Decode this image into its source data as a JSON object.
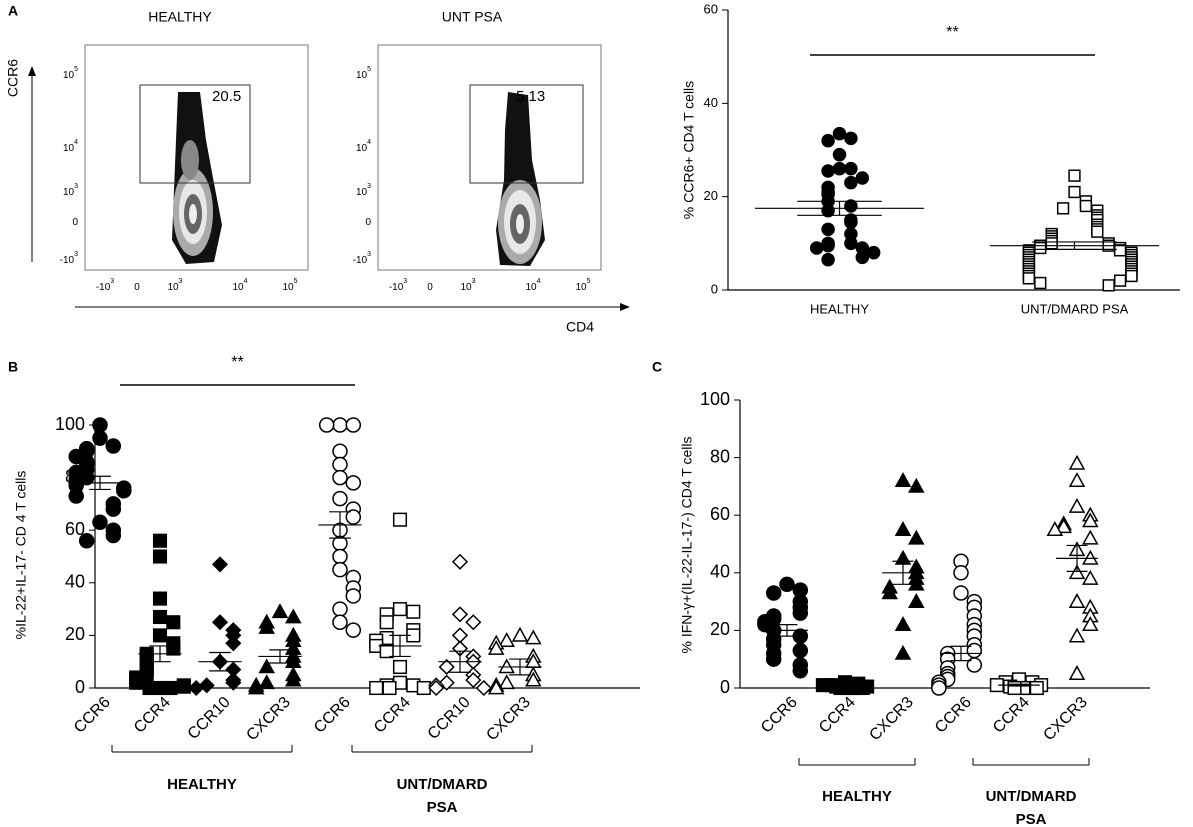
{
  "panels": [
    "A",
    "B",
    "C"
  ],
  "flow": {
    "titles": [
      "HEALTHY",
      "UNT PSA"
    ],
    "ylabel": "CCR6",
    "xlabel": "CD4",
    "gates": [
      20.5,
      5.13
    ],
    "yticks": [
      {
        "base": "10",
        "exp": "5"
      },
      {
        "base": "10",
        "exp": "4"
      },
      {
        "base": "10",
        "exp": "3"
      },
      {
        "base": "0"
      },
      {
        "base": "-10",
        "exp": "3"
      }
    ],
    "xticks": [
      {
        "base": "-10",
        "exp": "3"
      },
      {
        "base": "0"
      },
      {
        "base": "10",
        "exp": "3"
      },
      {
        "base": "10",
        "exp": "4"
      },
      {
        "base": "10",
        "exp": "5"
      }
    ]
  },
  "chart_data": [
    {
      "type": "dot",
      "ylabel": "% CCR6+ CD4 T cells",
      "ylim": [
        0,
        60
      ],
      "yticks": [
        0,
        20,
        40,
        60
      ],
      "annotation": "**",
      "series": [
        {
          "name": "HEALTHY",
          "marker": "circle",
          "filled": true,
          "mean": 17.5,
          "sem": 1.5,
          "values": [
            33.5,
            32.5,
            32,
            29,
            26,
            26,
            25.5,
            24,
            23,
            22,
            21,
            20.5,
            19,
            18,
            17,
            15,
            14.5,
            13,
            12,
            10,
            10,
            9.5,
            9,
            9,
            8,
            7,
            6.5
          ]
        },
        {
          "name": "UNT/DMARD  PSA",
          "marker": "square",
          "filled": false,
          "mean": 9.5,
          "sem": 0.8,
          "values": [
            24.5,
            21,
            19,
            18,
            17.5,
            17,
            16,
            15.5,
            15,
            14,
            13.5,
            13,
            12.5,
            12,
            11.5,
            11,
            10.5,
            10,
            10,
            9.5,
            9.5,
            9,
            9,
            8.5,
            8.5,
            8,
            8,
            7.5,
            7.5,
            7,
            7,
            6.5,
            6.5,
            6,
            6,
            5.5,
            5.5,
            5,
            5,
            4.5,
            4.5,
            4,
            4,
            3.5,
            3.5,
            3,
            3,
            2.5,
            2,
            1.5,
            1
          ]
        }
      ]
    },
    {
      "type": "dot",
      "ylabel": "%IL-22+IL-17- CD 4 T cells",
      "ylim": [
        0,
        100
      ],
      "yticks": [
        0,
        20,
        40,
        60,
        80,
        100
      ],
      "annotation": "**",
      "groups": [
        {
          "name": [
            "HEALTHY"
          ],
          "series": [
            {
              "name": "CCR6",
              "marker": "circle",
              "filled": true,
              "mean": 78,
              "sem": 2.5,
              "values": [
                100,
                95,
                92,
                91,
                90,
                88,
                86,
                85,
                83,
                82,
                80,
                79,
                78,
                77,
                76,
                75,
                73,
                70,
                68,
                63,
                60,
                58,
                56
              ]
            },
            {
              "name": "CCR4",
              "marker": "square",
              "filled": true,
              "mean": 13,
              "sem": 3,
              "values": [
                56,
                50,
                34,
                27,
                25,
                20,
                17,
                15,
                13,
                12,
                10,
                8,
                7,
                5,
                4,
                3,
                2,
                1,
                0.5,
                0,
                0,
                0
              ]
            },
            {
              "name": "CCR10",
              "marker": "diamond",
              "filled": true,
              "mean": 10,
              "sem": 3.5,
              "values": [
                47,
                25,
                22,
                20,
                17,
                10,
                7,
                3,
                2,
                1,
                0
              ]
            },
            {
              "name": "CXCR3",
              "marker": "triangle",
              "filled": true,
              "mean": 12,
              "sem": 2.5,
              "values": [
                29,
                27,
                25,
                23,
                20,
                18,
                15,
                12,
                10,
                8,
                5,
                3,
                2,
                1,
                0
              ]
            }
          ]
        },
        {
          "name": [
            "UNT/DMARD",
            "PSA"
          ],
          "series": [
            {
              "name": "CCR6",
              "marker": "circle",
              "filled": false,
              "mean": 62,
              "sem": 5,
              "values": [
                100,
                100,
                100,
                90,
                85,
                80,
                78,
                72,
                68,
                65,
                60,
                55,
                50,
                45,
                42,
                38,
                35,
                30,
                25,
                22
              ]
            },
            {
              "name": "CCR4",
              "marker": "square",
              "filled": false,
              "mean": 16,
              "sem": 4,
              "values": [
                64,
                30,
                29,
                28,
                25,
                22,
                20,
                19,
                18,
                16,
                14,
                8,
                2,
                1,
                1,
                0,
                0,
                0
              ]
            },
            {
              "name": "CCR10",
              "marker": "diamond",
              "filled": false,
              "mean": 10,
              "sem": 4,
              "values": [
                48,
                28,
                25,
                20,
                15,
                12,
                10,
                8,
                5,
                3,
                2,
                1,
                0,
                0
              ]
            },
            {
              "name": "CXCR3",
              "marker": "triangle",
              "filled": false,
              "mean": 8,
              "sem": 3,
              "values": [
                20,
                19,
                18,
                17,
                15,
                12,
                10,
                8,
                5,
                3,
                2,
                1,
                0
              ]
            }
          ]
        }
      ]
    },
    {
      "type": "dot",
      "ylabel": "% IFN-γ+(IL-22-IL-17-) CD4 T cells",
      "ylim": [
        0,
        100
      ],
      "yticks": [
        0,
        20,
        40,
        60,
        80,
        100
      ],
      "groups": [
        {
          "name": [
            "HEALTHY"
          ],
          "series": [
            {
              "name": "CCR6",
              "marker": "circle",
              "filled": true,
              "mean": 20,
              "sem": 2,
              "values": [
                36,
                34,
                33,
                30,
                28,
                26,
                25,
                24,
                23,
                22,
                20,
                18,
                17,
                15,
                13,
                12,
                10,
                8,
                6
              ]
            },
            {
              "name": "CCR4",
              "marker": "square",
              "filled": true,
              "mean": 0.5,
              "sem": 0.3,
              "values": [
                2,
                1.5,
                1,
                1,
                0.5,
                0.5,
                0,
                0,
                0,
                0
              ]
            },
            {
              "name": "CXCR3",
              "marker": "triangle",
              "filled": true,
              "mean": 40,
              "sem": 4,
              "values": [
                72,
                70,
                55,
                52,
                45,
                42,
                40,
                38,
                36,
                35,
                33,
                30,
                22,
                12
              ]
            }
          ]
        },
        {
          "name": [
            "UNT/DMARD",
            "PSA"
          ],
          "series": [
            {
              "name": "CCR6",
              "marker": "circle",
              "filled": false,
              "mean": 12,
              "sem": 2.5,
              "values": [
                44,
                40,
                33,
                30,
                28,
                25,
                22,
                20,
                18,
                15,
                13,
                12,
                10,
                8,
                7,
                5,
                4,
                3,
                2,
                1,
                0
              ]
            },
            {
              "name": "CCR4",
              "marker": "square",
              "filled": false,
              "mean": 1,
              "sem": 0.3,
              "values": [
                3,
                2,
                2,
                1,
                1,
                0.5,
                0,
                0,
                0,
                0
              ]
            },
            {
              "name": "CXCR3",
              "marker": "triangle",
              "filled": false,
              "mean": 45,
              "sem": 4.5,
              "values": [
                78,
                72,
                63,
                60,
                58,
                57,
                56,
                55,
                52,
                48,
                45,
                40,
                38,
                30,
                28,
                25,
                22,
                18,
                5
              ]
            }
          ]
        }
      ]
    }
  ]
}
